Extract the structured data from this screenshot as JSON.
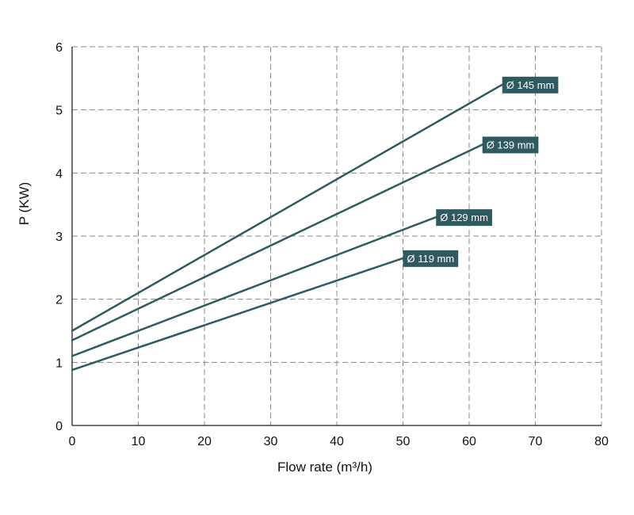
{
  "chart_data": {
    "type": "line",
    "title": "",
    "xlabel": "Flow rate (m³/h)",
    "ylabel": "P (KW)",
    "xlim": [
      0,
      80
    ],
    "ylim": [
      0,
      6
    ],
    "x_ticks": [
      0,
      10,
      20,
      30,
      40,
      50,
      60,
      70,
      80
    ],
    "y_ticks": [
      0,
      1,
      2,
      3,
      4,
      5,
      6
    ],
    "x_tick_labels": [
      "0",
      "10",
      "20",
      "30",
      "40",
      "50",
      "60",
      "70",
      "80"
    ],
    "y_tick_labels": [
      "0",
      "1",
      "2",
      "3",
      "4",
      "5",
      "6"
    ],
    "grid": true,
    "grid_style": "dashed",
    "line_color": "#2e5a60",
    "label_bg_color": "#2e5a60",
    "label_text_color": "#ffffff",
    "grid_color": "#8a8a8a",
    "series": [
      {
        "name": "Ø 145 mm",
        "x": [
          0,
          65
        ],
        "y": [
          1.5,
          5.4
        ]
      },
      {
        "name": "Ø 139 mm",
        "x": [
          0,
          62
        ],
        "y": [
          1.35,
          4.45
        ]
      },
      {
        "name": "Ø 129 mm",
        "x": [
          0,
          55
        ],
        "y": [
          1.1,
          3.3
        ]
      },
      {
        "name": "Ø 119 mm",
        "x": [
          0,
          50
        ],
        "y": [
          0.88,
          2.65
        ]
      }
    ]
  }
}
